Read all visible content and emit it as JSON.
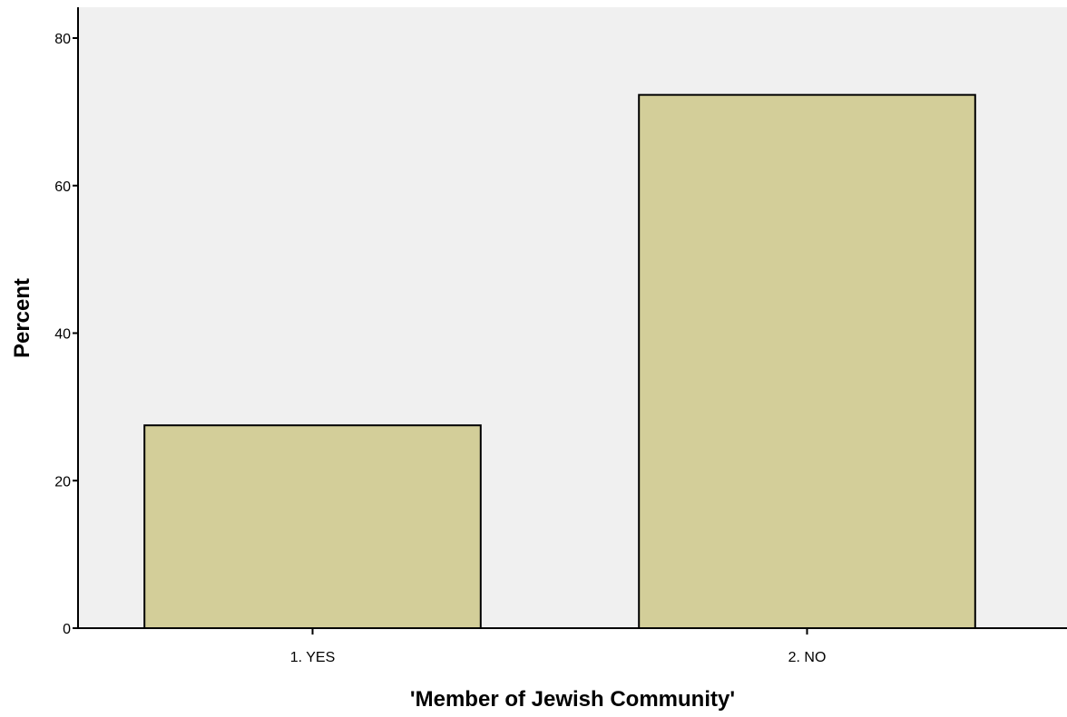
{
  "chart_data": {
    "type": "bar",
    "categories": [
      "1. YES",
      "2. NO"
    ],
    "values": [
      27.5,
      72.3
    ],
    "xlabel": "'Member of Jewish Community'",
    "ylabel": "Percent",
    "ylim": [
      0,
      80
    ],
    "yticks": [
      0,
      20,
      40,
      60,
      80
    ],
    "grid": false,
    "colors": {
      "bar_fill": "#d3ce99",
      "bar_stroke": "#000000",
      "plot_background": "#f0f0f0",
      "page_background": "#ffffff"
    }
  }
}
